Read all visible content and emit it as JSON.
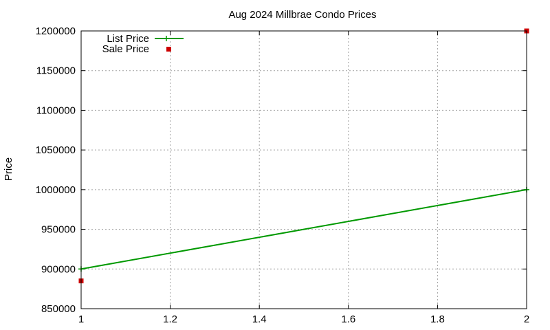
{
  "chart_data": {
    "type": "line",
    "title": "Aug 2024 Millbrae Condo Prices",
    "xlabel": "",
    "ylabel": "Price",
    "xlim": [
      1,
      2
    ],
    "ylim": [
      850000,
      1200000
    ],
    "x_ticks": [
      1,
      1.2,
      1.4,
      1.6,
      1.8,
      2
    ],
    "x_tick_labels": [
      "1",
      "1.2",
      "1.4",
      "1.6",
      "1.8",
      "2"
    ],
    "y_ticks": [
      850000,
      900000,
      950000,
      1000000,
      1050000,
      1100000,
      1150000,
      1200000
    ],
    "y_tick_labels": [
      "850000",
      "900000",
      "950000",
      "1000000",
      "1050000",
      "1100000",
      "1150000",
      "1200000"
    ],
    "grid": true,
    "legend_position": "top-left",
    "series": [
      {
        "name": "List Price",
        "style": "line-with-plus-markers",
        "color": "#009900",
        "x": [
          1,
          2
        ],
        "y": [
          900000,
          1000000
        ]
      },
      {
        "name": "Sale Price",
        "style": "square-markers",
        "color": "#cc0000",
        "x": [
          1,
          2
        ],
        "y": [
          885000,
          1200000
        ]
      }
    ]
  }
}
